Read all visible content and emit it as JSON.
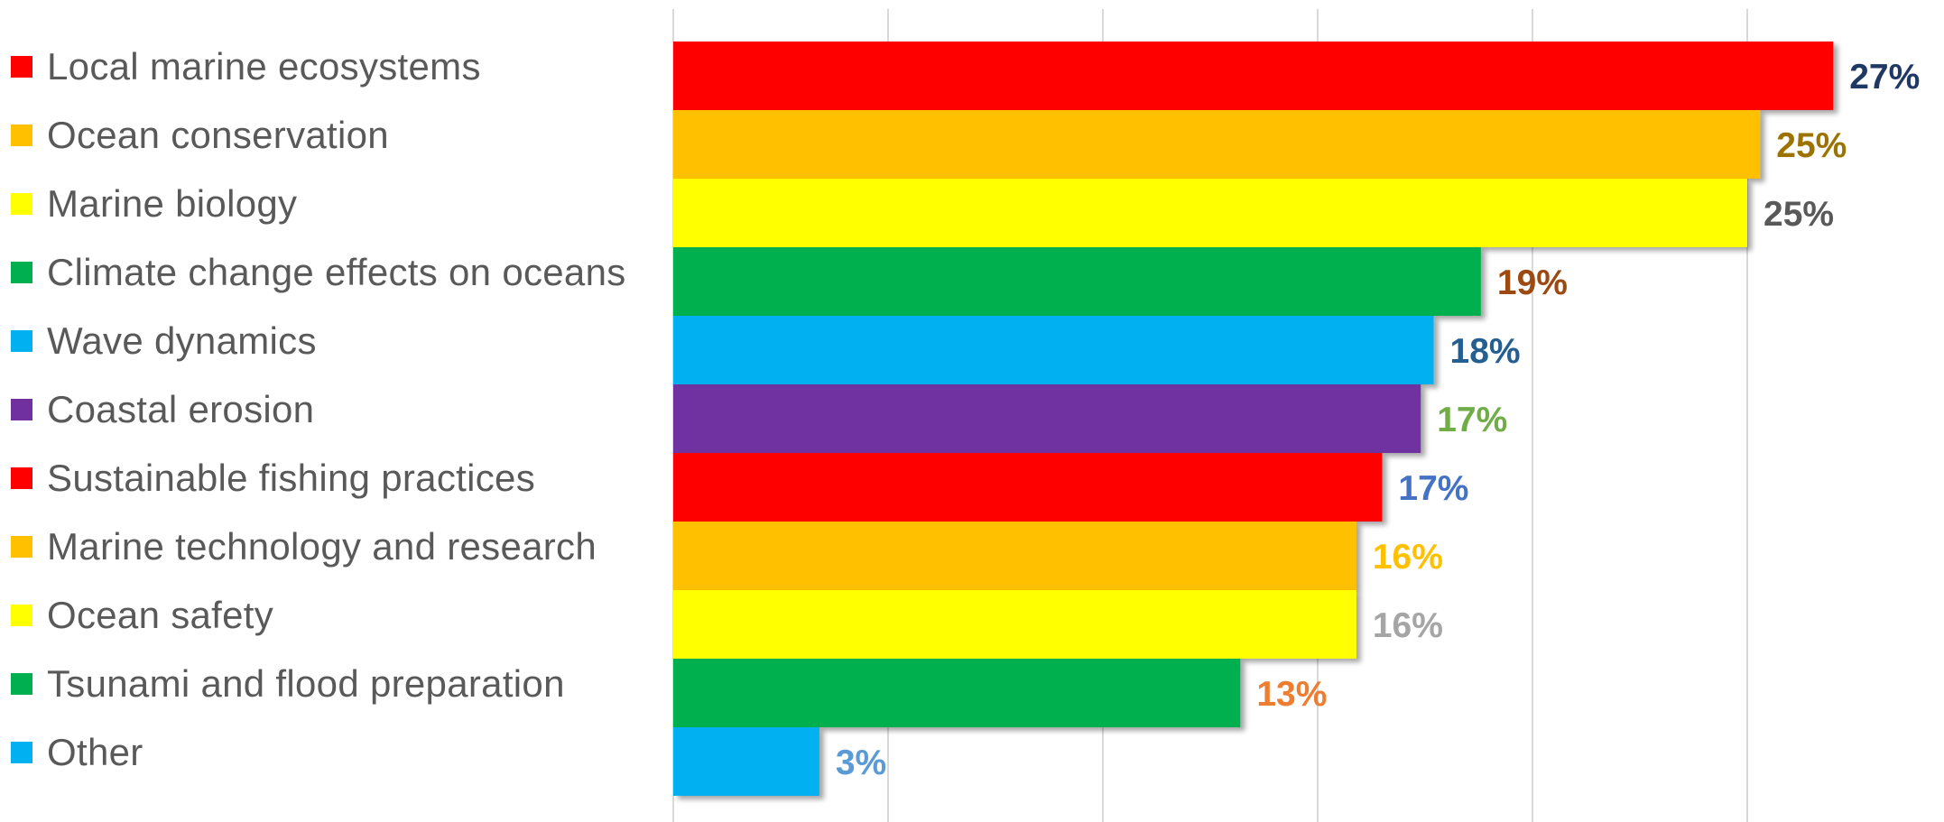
{
  "chart_data": {
    "type": "bar",
    "orientation": "horizontal",
    "categories": [
      "Local marine ecosystems",
      "Ocean conservation",
      "Marine biology",
      "Climate change effects on oceans",
      "Wave dynamics",
      "Coastal erosion",
      "Sustainable fishing practices",
      "Marine technology and research",
      "Ocean safety",
      "Tsunami and flood preparation",
      "Other"
    ],
    "values": [
      27,
      25.3,
      25,
      18.8,
      17.7,
      17.4,
      16.5,
      15.9,
      15.9,
      13.2,
      3.4
    ],
    "data_labels": [
      "27%",
      "25%",
      "25%",
      "19%",
      "18%",
      "17%",
      "17%",
      "16%",
      "16%",
      "13%",
      "3%"
    ],
    "bar_colors": [
      "#ff0000",
      "#ffc000",
      "#ffff00",
      "#00b050",
      "#00b0f0",
      "#7030a0",
      "#ff0000",
      "#ffc000",
      "#ffff00",
      "#00b050",
      "#00b0f0"
    ],
    "label_colors": [
      "#1f3864",
      "#9c7300",
      "#595959",
      "#9c4a12",
      "#255e91",
      "#70ad47",
      "#4472c4",
      "#ffc000",
      "#a5a5a5",
      "#ed7d31",
      "#5b9bd5"
    ],
    "xlim": [
      0,
      30
    ],
    "x_gridlines": [
      0,
      5,
      10,
      15,
      20,
      25
    ],
    "grid": true,
    "legend_position": "left",
    "gridline_color": "#d9d9d9"
  }
}
